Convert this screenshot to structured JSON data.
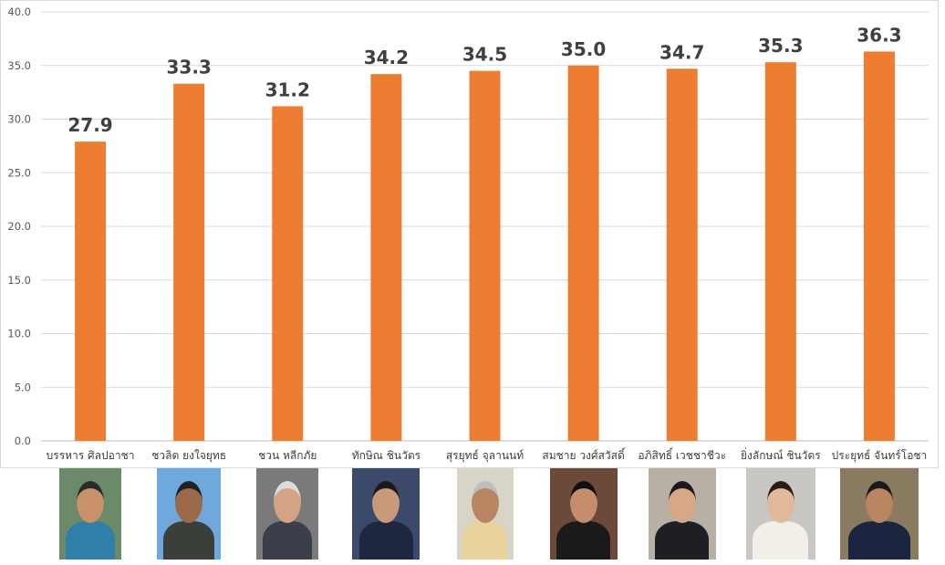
{
  "chart_data": {
    "type": "bar",
    "categories": [
      "บรรหาร ศิลปอาชา",
      "ชวลิต ยงใจยุทธ",
      "ชวน หลีกภัย",
      "ทักษิณ ชินวัตร",
      "สุรยุทธ์ จุลานนท์",
      "สมชาย วงศ์สวัสดิ์",
      "อภิสิทธิ์ เวชชาชีวะ",
      "ยิ่งลักษณ์ ชินวัตร",
      "ประยุทธ์ จันทร์โอชา"
    ],
    "values": [
      27.9,
      33.3,
      31.2,
      34.2,
      34.5,
      35.0,
      34.7,
      35.3,
      36.3
    ],
    "value_labels": [
      "27.9",
      "33.3",
      "31.2",
      "34.2",
      "34.5",
      "35.0",
      "34.7",
      "35.3",
      "36.3"
    ],
    "yticks": [
      "0.0",
      "5.0",
      "10.0",
      "15.0",
      "20.0",
      "25.0",
      "30.0",
      "35.0",
      "40.0"
    ],
    "ylim": [
      0,
      40
    ],
    "grid": true,
    "bar_color": "#ED7D31"
  },
  "photos": [
    {
      "name": "portrait-1",
      "bg": "#6a8a6a",
      "skin": "#c8916a",
      "suit": "#2f7fa8",
      "hair": "#2a2a2a"
    },
    {
      "name": "portrait-2",
      "bg": "#6fa8dc",
      "skin": "#9c6a4a",
      "suit": "#3a3f3a",
      "hair": "#222222"
    },
    {
      "name": "portrait-3",
      "bg": "#7a7a7a",
      "skin": "#d2a384",
      "suit": "#3a3f4a",
      "hair": "#dcdcdc"
    },
    {
      "name": "portrait-4",
      "bg": "#3b4a6b",
      "skin": "#c99a7a",
      "suit": "#1f2740",
      "hair": "#1a1a1a"
    },
    {
      "name": "portrait-5",
      "bg": "#d9d4c8",
      "skin": "#b88462",
      "suit": "#e8d49a",
      "hair": "#bfbfbf"
    },
    {
      "name": "portrait-6",
      "bg": "#6b4a3a",
      "skin": "#c48e6c",
      "suit": "#1a1a1a",
      "hair": "#111111"
    },
    {
      "name": "portrait-7",
      "bg": "#b8b0a4",
      "skin": "#d6a888",
      "suit": "#1d1f24",
      "hair": "#1a1a1a"
    },
    {
      "name": "portrait-8",
      "bg": "#c9c7c2",
      "skin": "#e0b89a",
      "suit": "#f2efe8",
      "hair": "#2a1c14"
    },
    {
      "name": "portrait-9",
      "bg": "#8a7a60",
      "skin": "#b98563",
      "suit": "#1c2540",
      "hair": "#1a1a1a"
    }
  ]
}
